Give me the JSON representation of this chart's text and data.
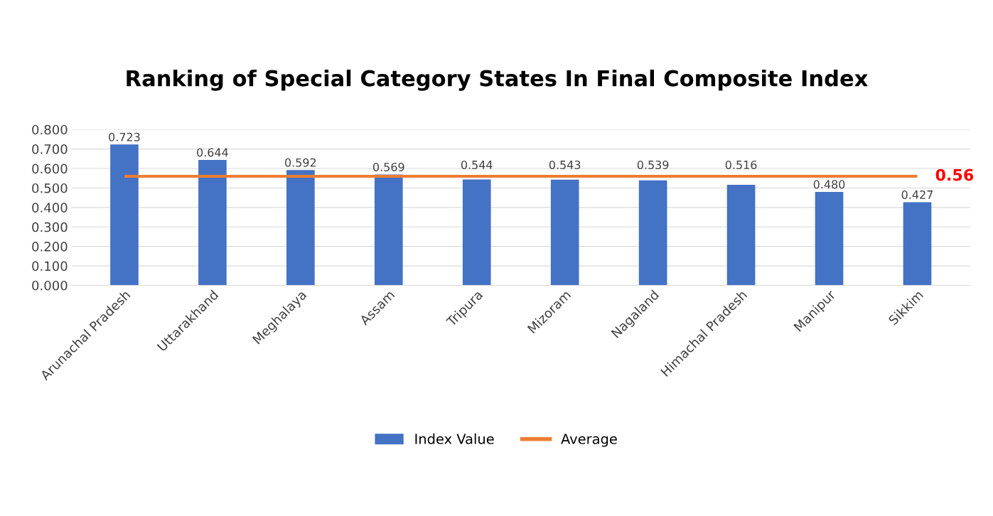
{
  "chart_data": {
    "type": "bar",
    "title": "Ranking of Special Category States In Final Composite Index",
    "categories": [
      "Arunachal Pradesh",
      "Uttarakhand",
      "Meghalaya",
      "Assam",
      "Tripura",
      "Mizoram",
      "Nagaland",
      "Himachal Pradesh",
      "Manipur",
      "Sikkim"
    ],
    "series": [
      {
        "name": "Index Value",
        "color": "#4472c4",
        "values": [
          0.723,
          0.644,
          0.592,
          0.569,
          0.544,
          0.543,
          0.539,
          0.516,
          0.48,
          0.427
        ],
        "value_labels": [
          "0.723",
          "0.644",
          "0.592",
          "0.569",
          "0.544",
          "0.543",
          "0.539",
          "0.516",
          "0.480",
          "0.427"
        ]
      },
      {
        "name": "Average",
        "type": "line",
        "color": "#ed7d31",
        "values": [
          0.56,
          0.56,
          0.56,
          0.56,
          0.56,
          0.56,
          0.56,
          0.56,
          0.56,
          0.56
        ],
        "value_labels": [
          null,
          null,
          null,
          null,
          null,
          null,
          null,
          null,
          null,
          "0.56"
        ]
      }
    ],
    "ylim": [
      0,
      0.8
    ],
    "yticks": [
      {
        "value": 0,
        "label": "0.000"
      },
      {
        "value": 0.1,
        "label": "0.100"
      },
      {
        "value": 0.2,
        "label": "0.200"
      },
      {
        "value": 0.3,
        "label": "0.300"
      },
      {
        "value": 0.4,
        "label": "0.400"
      },
      {
        "value": 0.5,
        "label": "0.500"
      },
      {
        "value": 0.6,
        "label": "0.600"
      },
      {
        "value": 0.7,
        "label": "0.700"
      },
      {
        "value": 0.8,
        "label": "0.800"
      }
    ],
    "grid": "y",
    "legend": "bottom"
  }
}
